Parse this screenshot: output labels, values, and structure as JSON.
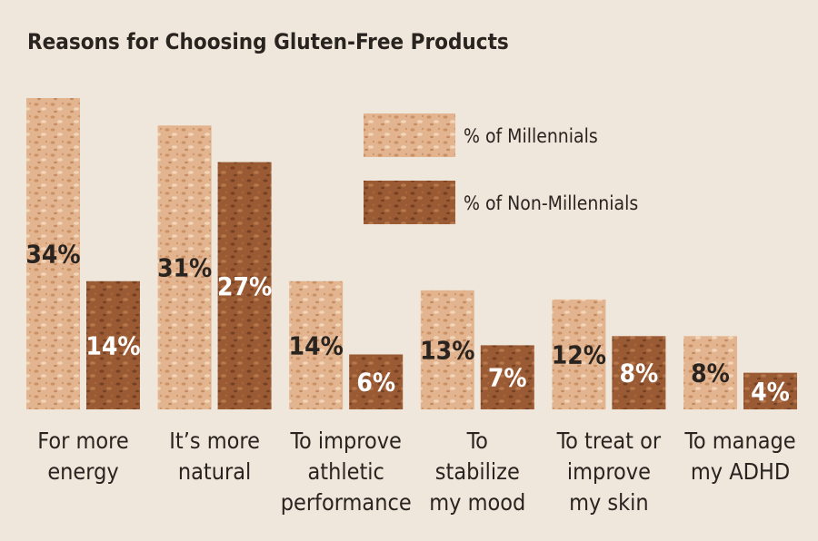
{
  "chart_data": {
    "type": "bar",
    "title": "Reasons for Choosing Gluten-Free Products",
    "categories": [
      [
        "For more",
        "energy"
      ],
      [
        "It’s more",
        "natural"
      ],
      [
        "To improve",
        "athletic",
        "performance"
      ],
      [
        "To",
        "stabilize",
        "my mood"
      ],
      [
        "To treat or",
        "improve",
        "my skin"
      ],
      [
        "To manage",
        "my ADHD"
      ]
    ],
    "series": [
      {
        "name": "% of Millennials",
        "values": [
          34,
          31,
          14,
          13,
          12,
          8
        ],
        "labels": [
          "34%",
          "31%",
          "14%",
          "13%",
          "12%",
          "8%"
        ],
        "color": "#e2b590"
      },
      {
        "name": "% of Non-Millennials",
        "values": [
          14,
          27,
          6,
          7,
          8,
          4
        ],
        "labels": [
          "14%",
          "27%",
          "6%",
          "7%",
          "8%",
          "4%"
        ],
        "color": "#9a5a34"
      }
    ],
    "ylim": [
      0,
      34
    ],
    "grid": false,
    "legend": "top-right"
  }
}
